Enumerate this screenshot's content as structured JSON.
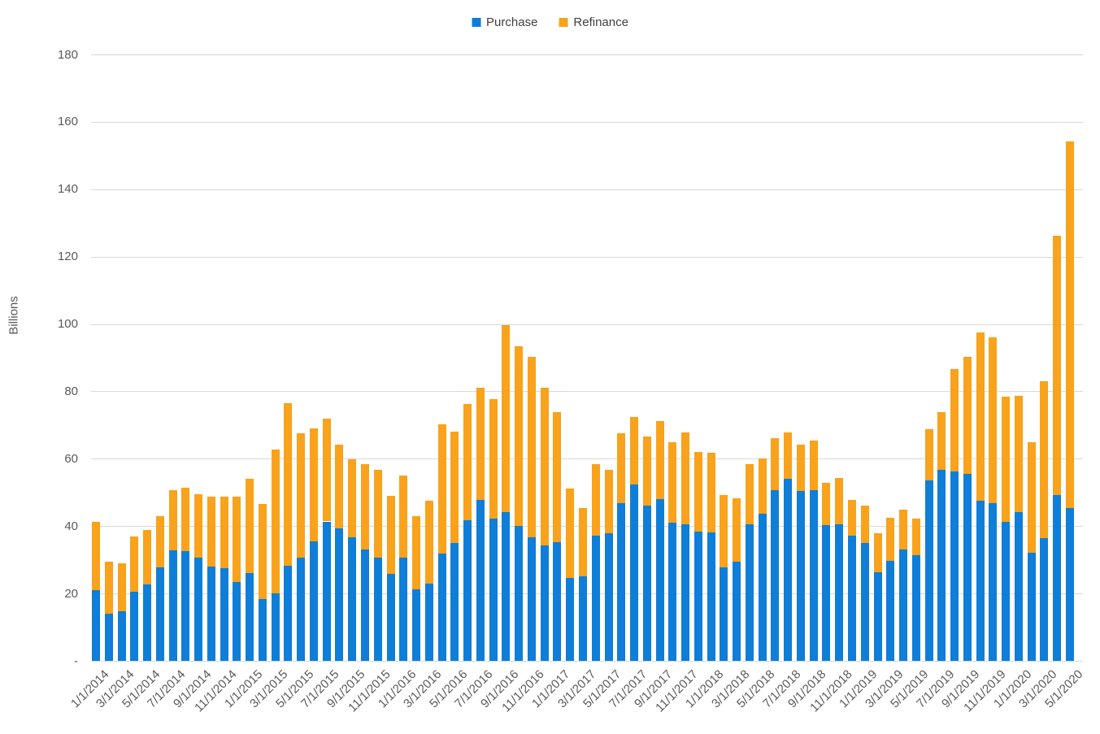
{
  "chart_data": {
    "type": "bar",
    "stacked": true,
    "title": "",
    "ylabel": "Billions",
    "xlabel": "",
    "ylim": [
      0,
      180
    ],
    "grid": true,
    "legend_position": "top-center",
    "y_ticks": {
      "values": [
        180,
        160,
        140,
        120,
        100,
        80,
        60,
        40,
        20,
        0
      ],
      "labels": [
        "180",
        "160",
        "140",
        "120",
        "100",
        "80",
        "60",
        "40",
        "20",
        "-"
      ]
    },
    "x_label_every": 2,
    "categories": [
      "1/1/2014",
      "2/1/2014",
      "3/1/2014",
      "4/1/2014",
      "5/1/2014",
      "6/1/2014",
      "7/1/2014",
      "8/1/2014",
      "9/1/2014",
      "10/1/2014",
      "11/1/2014",
      "12/1/2014",
      "1/1/2015",
      "2/1/2015",
      "3/1/2015",
      "4/1/2015",
      "5/1/2015",
      "6/1/2015",
      "7/1/2015",
      "8/1/2015",
      "9/1/2015",
      "10/1/2015",
      "11/1/2015",
      "12/1/2015",
      "1/1/2016",
      "2/1/2016",
      "3/1/2016",
      "4/1/2016",
      "5/1/2016",
      "6/1/2016",
      "7/1/2016",
      "8/1/2016",
      "9/1/2016",
      "10/1/2016",
      "11/1/2016",
      "12/1/2016",
      "1/1/2017",
      "2/1/2017",
      "3/1/2017",
      "4/1/2017",
      "5/1/2017",
      "6/1/2017",
      "7/1/2017",
      "8/1/2017",
      "9/1/2017",
      "10/1/2017",
      "11/1/2017",
      "12/1/2017",
      "1/1/2018",
      "2/1/2018",
      "3/1/2018",
      "4/1/2018",
      "5/1/2018",
      "6/1/2018",
      "7/1/2018",
      "8/1/2018",
      "9/1/2018",
      "10/1/2018",
      "11/1/2018",
      "12/1/2018",
      "1/1/2019",
      "2/1/2019",
      "3/1/2019",
      "4/1/2019",
      "5/1/2019",
      "6/1/2019",
      "7/1/2019",
      "8/1/2019",
      "9/1/2019",
      "10/1/2019",
      "11/1/2019",
      "12/1/2019",
      "1/1/2020",
      "2/1/2020",
      "3/1/2020",
      "4/1/2020",
      "5/1/2020"
    ],
    "series": [
      {
        "name": "Purchase",
        "color": "#0e7ed8",
        "values": [
          21.2,
          14.1,
          14.9,
          20.6,
          22.8,
          27.9,
          32.9,
          32.6,
          30.7,
          28.0,
          27.6,
          23.5,
          26.1,
          18.5,
          20.2,
          28.3,
          30.8,
          35.5,
          41.5,
          39.5,
          36.7,
          33.1,
          30.7,
          25.9,
          30.7,
          21.4,
          23.0,
          31.9,
          35.1,
          41.9,
          48.0,
          42.3,
          44.3,
          40.1,
          36.7,
          34.3,
          35.3,
          24.8,
          25.1,
          37.3,
          38.1,
          46.9,
          52.4,
          46.2,
          48.2,
          41.1,
          40.7,
          38.5,
          38.3,
          27.9,
          29.5,
          40.6,
          43.9,
          50.9,
          54.2,
          50.6,
          50.9,
          40.5,
          40.7,
          37.3,
          35.1,
          26.5,
          29.9,
          33.1,
          31.5,
          53.6,
          56.8,
          56.4,
          55.5,
          47.7,
          46.9,
          41.5,
          44.2,
          32.1,
          36.5,
          49.3,
          45.5
        ]
      },
      {
        "name": "Refinance",
        "color": "#f9a21b",
        "values": [
          20.1,
          15.5,
          14.1,
          16.5,
          16.2,
          15.2,
          18.0,
          18.8,
          18.9,
          20.8,
          21.3,
          25.4,
          28.1,
          28.3,
          42.6,
          48.2,
          37.0,
          33.6,
          30.5,
          24.9,
          23.3,
          25.3,
          26.1,
          23.3,
          24.5,
          21.7,
          24.7,
          38.4,
          33.1,
          34.4,
          33.3,
          35.5,
          55.5,
          53.4,
          53.6,
          46.8,
          38.6,
          26.4,
          20.3,
          21.1,
          18.7,
          20.7,
          20.1,
          20.6,
          23.1,
          24.0,
          27.2,
          23.7,
          23.6,
          21.5,
          18.9,
          18.0,
          16.4,
          15.3,
          13.7,
          13.8,
          14.5,
          12.5,
          13.7,
          10.7,
          11.0,
          11.4,
          12.8,
          11.9,
          10.8,
          15.2,
          17.1,
          30.4,
          34.8,
          49.8,
          49.3,
          37.0,
          34.7,
          32.9,
          46.7,
          77.0,
          108.7
        ]
      }
    ],
    "colors": {
      "gridline": "#d9d9d9",
      "axis_text": "#595959",
      "legend_text": "#404040",
      "background": "#ffffff"
    }
  }
}
